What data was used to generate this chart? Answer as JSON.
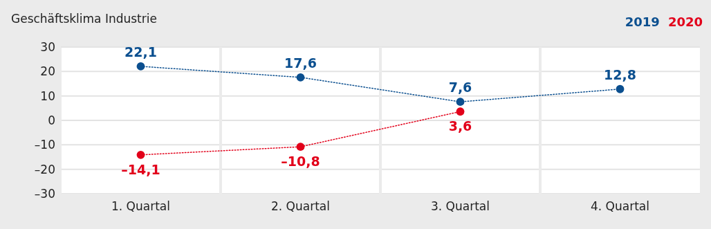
{
  "chart_data": {
    "type": "line",
    "title": "Geschäftsklima Industrie",
    "categories": [
      "1. Quartal",
      "2. Quartal",
      "3. Quartal",
      "4. Quartal"
    ],
    "series": [
      {
        "name": "2019",
        "color": "#0b4f8f",
        "values": [
          22.1,
          17.6,
          7.6,
          12.8
        ],
        "value_labels": [
          "22,1",
          "17,6",
          "7,6",
          "12,8"
        ]
      },
      {
        "name": "2020",
        "color": "#e2001a",
        "values": [
          -14.1,
          -10.8,
          3.6,
          null
        ],
        "value_labels": [
          "–14,1",
          "–10,8",
          "3,6",
          null
        ]
      }
    ],
    "ylim": [
      -30,
      30
    ],
    "yticks": [
      {
        "value": -30,
        "label": "–30"
      },
      {
        "value": -20,
        "label": "–20"
      },
      {
        "value": -10,
        "label": "–10"
      },
      0,
      10,
      20,
      30
    ],
    "grid": "y",
    "legend": "top right",
    "marker": "circle",
    "line_style": "dotted"
  }
}
